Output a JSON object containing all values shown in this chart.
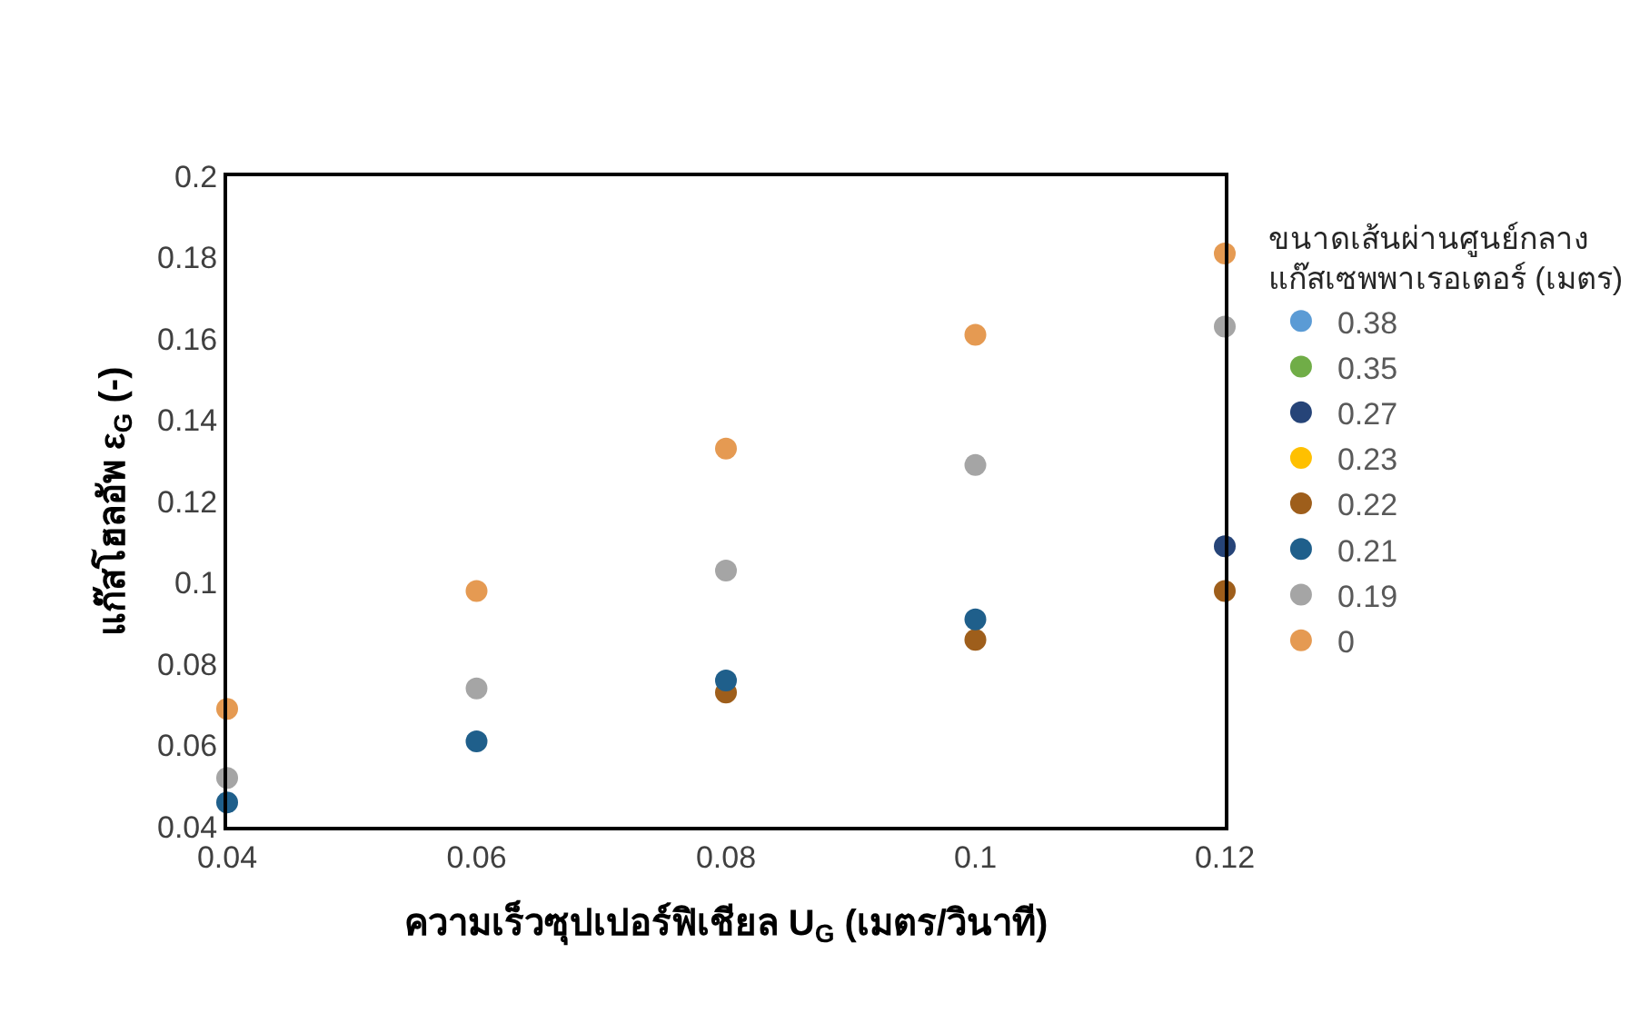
{
  "chart_data": {
    "type": "scatter",
    "xlabel": "ความเร็วซุปเปอร์ฟิเชียล U$_{G}$ (เมตร/วินาที)",
    "ylabel": "แก๊สโฮลอัพ ε$_{G}$ (-)",
    "legend_title": "ขนาดเส้นผ่านศูนย์กลาง\nแก๊สเซพพาเรอเตอร์ (เมตร)",
    "x": [
      0.04,
      0.06,
      0.08,
      0.1,
      0.12
    ],
    "series": [
      {
        "name": "0.38",
        "color": "#5b9bd5",
        "values": [
          null,
          null,
          null,
          null,
          null
        ]
      },
      {
        "name": "0.35",
        "color": "#70ad47",
        "values": [
          null,
          null,
          null,
          null,
          null
        ]
      },
      {
        "name": "0.27",
        "color": "#264478",
        "values": [
          null,
          null,
          null,
          null,
          0.109
        ]
      },
      {
        "name": "0.23",
        "color": "#ffc000",
        "values": [
          null,
          null,
          null,
          null,
          null
        ]
      },
      {
        "name": "0.22",
        "color": "#9e5e1b",
        "values": [
          null,
          null,
          0.073,
          0.086,
          0.098
        ]
      },
      {
        "name": "0.21",
        "color": "#1f5f8b",
        "values": [
          0.046,
          0.061,
          0.076,
          0.091,
          null
        ]
      },
      {
        "name": "0.19",
        "color": "#a5a5a5",
        "values": [
          0.052,
          0.074,
          0.103,
          0.129,
          0.163
        ]
      },
      {
        "name": "0",
        "color": "#e59a52",
        "values": [
          0.069,
          0.098,
          0.133,
          0.161,
          0.181
        ]
      }
    ],
    "xlim": [
      0.04,
      0.12
    ],
    "xticks": [
      0.04,
      0.06,
      0.08,
      0.1,
      0.12
    ],
    "ylim": [
      0.04,
      0.2
    ],
    "yticks": [
      0.04,
      0.06,
      0.08,
      0.1,
      0.12,
      0.14,
      0.16,
      0.18,
      0.2
    ],
    "grid": false,
    "legend": "right",
    "marker": "circle"
  }
}
